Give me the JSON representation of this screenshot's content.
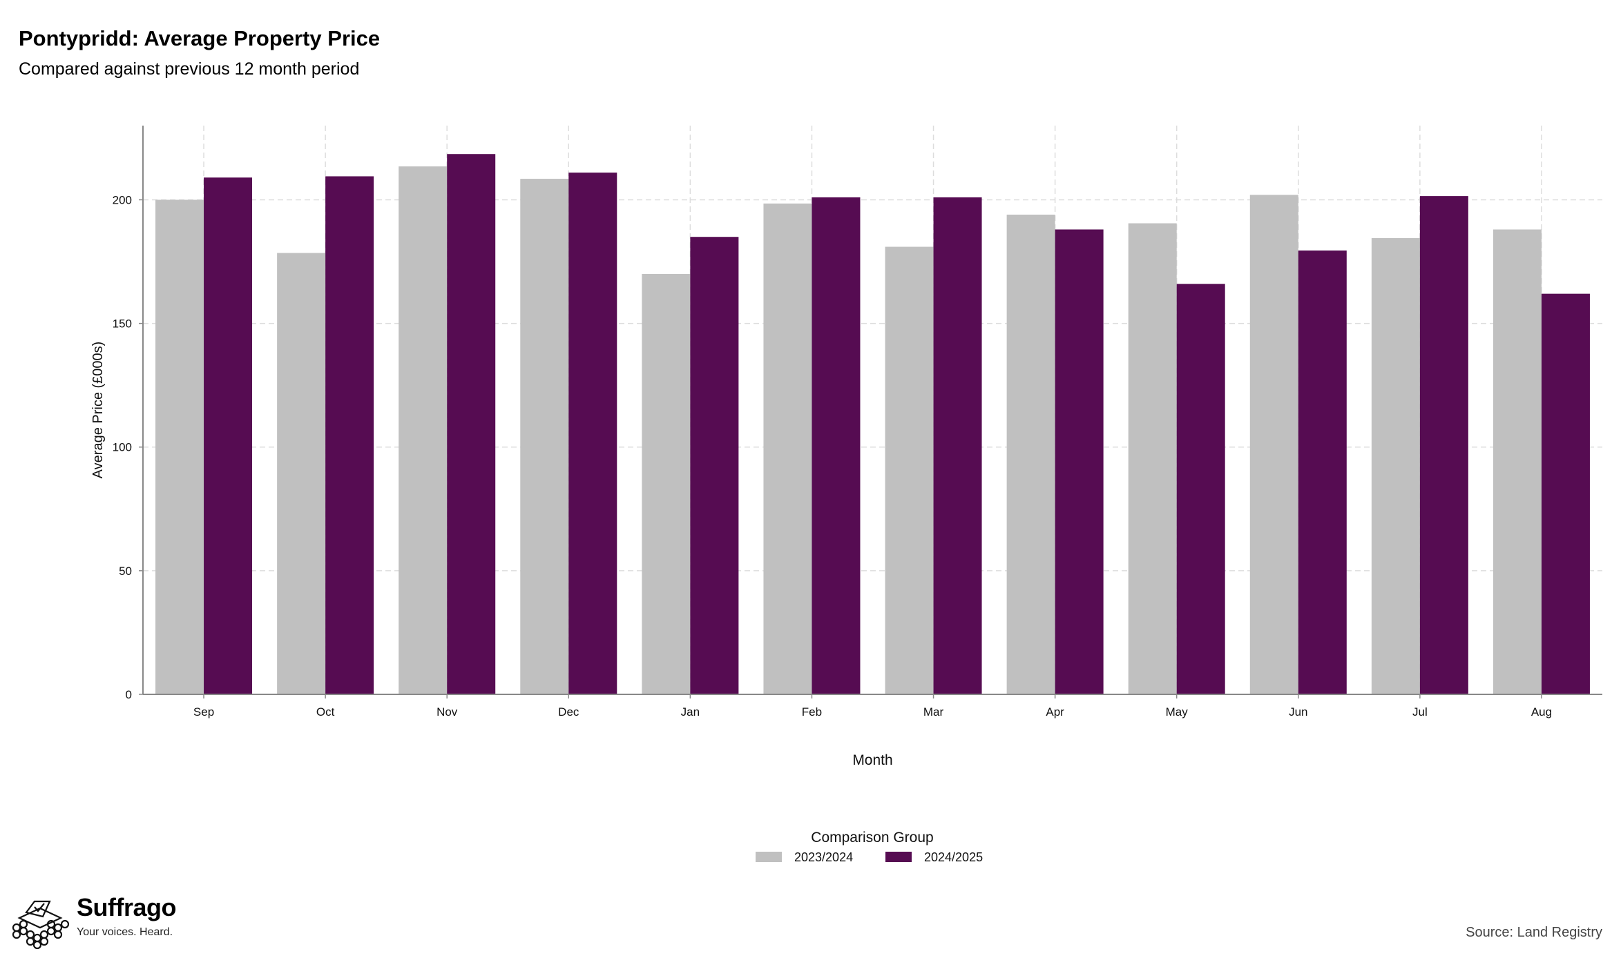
{
  "header": {
    "title": "Pontypridd: Average Property Price",
    "subtitle": "Compared against previous 12 month period"
  },
  "brand": {
    "name": "Suffrago",
    "tagline": "Your voices. Heard.",
    "logo_icon": "ballot-box-icon"
  },
  "footer": {
    "source": "Source: Land Registry"
  },
  "colors": {
    "series_2023_2024": "#c0c0c0",
    "series_2024_2025": "#560c52",
    "grid": "#dddddd",
    "axis": "#888888"
  },
  "chart_data": {
    "type": "bar",
    "xlabel": "Month",
    "ylabel": "Average Price (£000s)",
    "ylim": [
      0,
      230
    ],
    "yticks": [
      0,
      50,
      100,
      150,
      200
    ],
    "grid": true,
    "legend": {
      "title": "Comparison Group",
      "placement": "bottom-center"
    },
    "categories": [
      "Sep",
      "Oct",
      "Nov",
      "Dec",
      "Jan",
      "Feb",
      "Mar",
      "Apr",
      "May",
      "Jun",
      "Jul",
      "Aug"
    ],
    "series": [
      {
        "name": "2023/2024",
        "color": "#c0c0c0",
        "values": [
          200,
          178.5,
          213.5,
          208.5,
          170,
          198.5,
          181,
          194,
          190.5,
          202,
          184.5,
          188
        ]
      },
      {
        "name": "2024/2025",
        "color": "#560c52",
        "values": [
          209,
          209.5,
          218.5,
          211,
          185,
          201,
          201,
          188,
          166,
          179.5,
          201.5,
          162
        ]
      }
    ]
  }
}
